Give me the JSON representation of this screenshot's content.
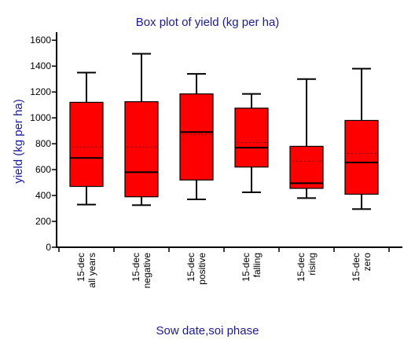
{
  "chart_data": {
    "type": "box",
    "title": "Box plot of yield (kg per ha)",
    "xlabel": "Sow date,soi phase",
    "ylabel": "yield (kg per ha)",
    "ylim": [
      0,
      1650
    ],
    "yticks": [
      0,
      200,
      400,
      600,
      800,
      1000,
      1200,
      1400,
      1600
    ],
    "grid": false,
    "legend": "none",
    "colors": {
      "box_fill": "#ff0000",
      "mean_line": "#a00000",
      "title_text": "#1a1aa6"
    },
    "categories": [
      {
        "line1": "15-dec",
        "line2": "all years"
      },
      {
        "line1": "15-dec",
        "line2": "negative"
      },
      {
        "line1": "15-dec",
        "line2": "positive"
      },
      {
        "line1": "15-dec",
        "line2": "falling"
      },
      {
        "line1": "15-dec",
        "line2": "rising"
      },
      {
        "line1": "15-dec",
        "line2": "zero"
      }
    ],
    "boxes": [
      {
        "min": 330,
        "q1": 470,
        "median": 690,
        "mean": 775,
        "q3": 1120,
        "max": 1350
      },
      {
        "min": 325,
        "q1": 390,
        "median": 580,
        "mean": 775,
        "q3": 1125,
        "max": 1495
      },
      {
        "min": 370,
        "q1": 520,
        "median": 890,
        "mean": 870,
        "q3": 1185,
        "max": 1340
      },
      {
        "min": 425,
        "q1": 620,
        "median": 770,
        "mean": 810,
        "q3": 1075,
        "max": 1185
      },
      {
        "min": 380,
        "q1": 455,
        "median": 495,
        "mean": 665,
        "q3": 780,
        "max": 1300
      },
      {
        "min": 295,
        "q1": 410,
        "median": 655,
        "mean": 725,
        "q3": 980,
        "max": 1380
      }
    ]
  }
}
